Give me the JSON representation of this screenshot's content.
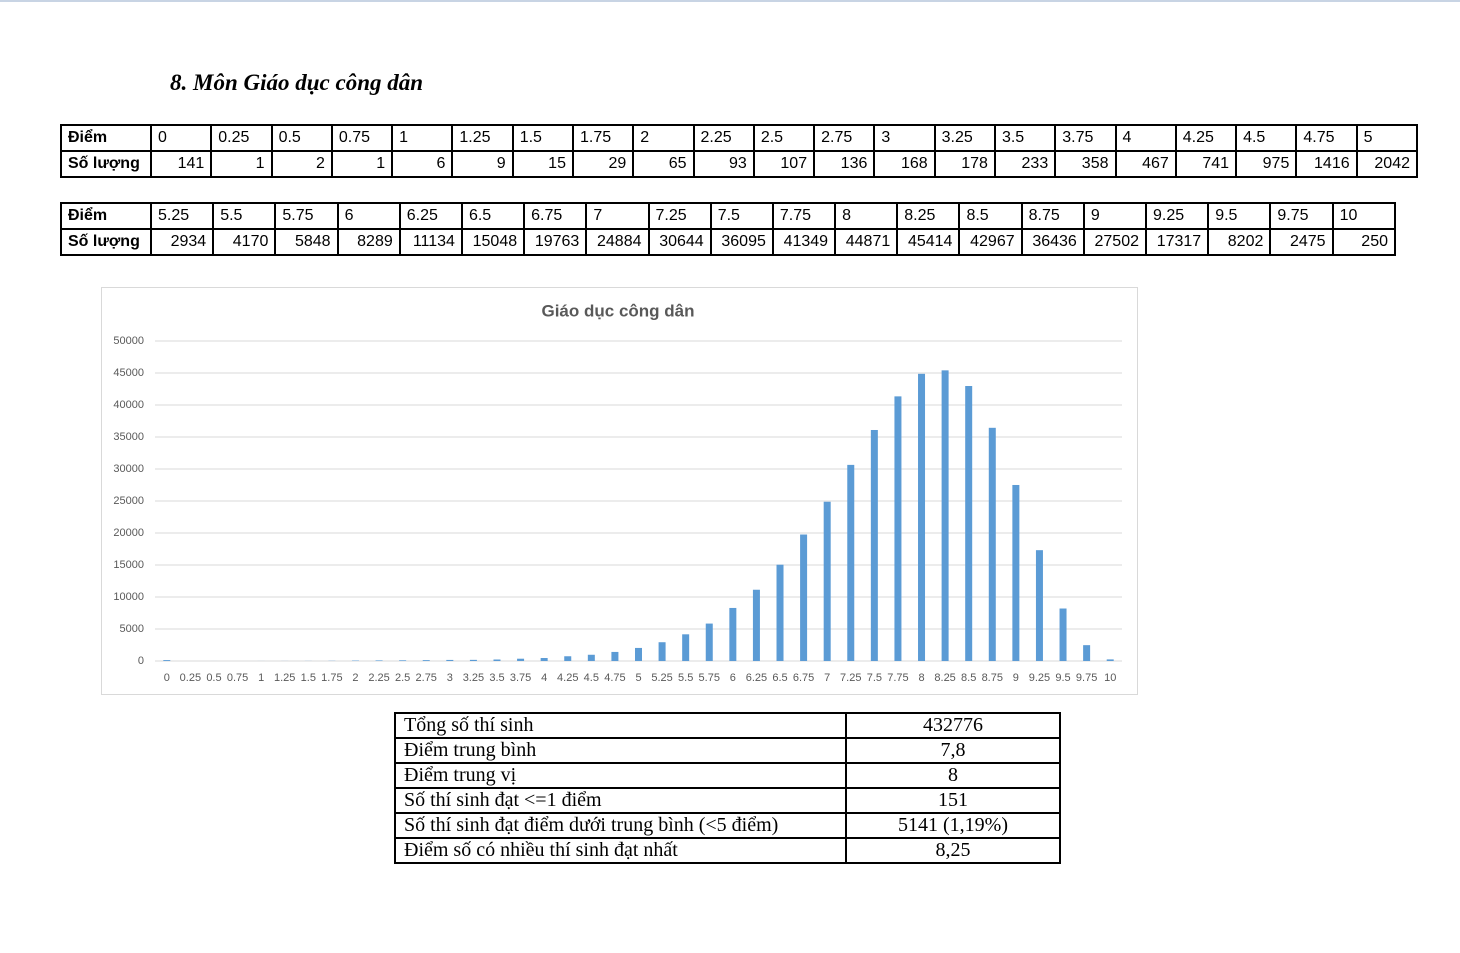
{
  "heading": "8. Môn Giáo dục công dân",
  "tables": [
    {
      "row_labels": [
        "Điểm",
        "Số lượng"
      ],
      "scores": [
        "0",
        "0.25",
        "0.5",
        "0.75",
        "1",
        "1.25",
        "1.5",
        "1.75",
        "2",
        "2.25",
        "2.5",
        "2.75",
        "3",
        "3.25",
        "3.5",
        "3.75",
        "4",
        "4.25",
        "4.5",
        "4.75",
        "5"
      ],
      "counts": [
        141,
        1,
        2,
        1,
        6,
        9,
        15,
        29,
        65,
        93,
        107,
        136,
        168,
        178,
        233,
        358,
        467,
        741,
        975,
        1416,
        2042
      ]
    },
    {
      "row_labels": [
        "Điểm",
        "Số lượng"
      ],
      "scores": [
        "5.25",
        "5.5",
        "5.75",
        "6",
        "6.25",
        "6.5",
        "6.75",
        "7",
        "7.25",
        "7.5",
        "7.75",
        "8",
        "8.25",
        "8.5",
        "8.75",
        "9",
        "9.25",
        "9.5",
        "9.75",
        "10"
      ],
      "counts": [
        2934,
        4170,
        5848,
        8289,
        11134,
        15048,
        19763,
        24884,
        30644,
        36095,
        41349,
        44871,
        45414,
        42967,
        36436,
        27502,
        17317,
        8202,
        2475,
        250
      ]
    }
  ],
  "chart_data": {
    "type": "bar",
    "title": "Giáo dục công dân",
    "categories": [
      "0",
      "0.25",
      "0.5",
      "0.75",
      "1",
      "1.25",
      "1.5",
      "1.75",
      "2",
      "2.25",
      "2.5",
      "2.75",
      "3",
      "3.25",
      "3.5",
      "3.75",
      "4",
      "4.25",
      "4.5",
      "4.75",
      "5",
      "5.25",
      "5.5",
      "5.75",
      "6",
      "6.25",
      "6.5",
      "6.75",
      "7",
      "7.25",
      "7.5",
      "7.75",
      "8",
      "8.25",
      "8.5",
      "8.75",
      "9",
      "9.25",
      "9.5",
      "9.75",
      "10"
    ],
    "values": [
      141,
      1,
      2,
      1,
      6,
      9,
      15,
      29,
      65,
      93,
      107,
      136,
      168,
      178,
      233,
      358,
      467,
      741,
      975,
      1416,
      2042,
      2934,
      4170,
      5848,
      8289,
      11134,
      15048,
      19763,
      24884,
      30644,
      36095,
      41349,
      44871,
      45414,
      42967,
      36436,
      27502,
      17317,
      8202,
      2475,
      250
    ],
    "color": "#5b9bd5",
    "ylim": [
      0,
      50000
    ],
    "yticks": [
      0,
      5000,
      10000,
      15000,
      20000,
      25000,
      30000,
      35000,
      40000,
      45000,
      50000
    ],
    "grid": true
  },
  "summary": {
    "rows": [
      [
        "Tổng số thí sinh",
        "432776"
      ],
      [
        "Điểm trung bình",
        "7,8"
      ],
      [
        "Điểm trung vị",
        "8"
      ],
      [
        "Số thí sinh đạt <=1 điểm",
        "151"
      ],
      [
        "Số thí sinh đạt điểm dưới trung bình (<5 điểm)",
        "5141 (1,19%)"
      ],
      [
        "Điểm số có nhiều thí sinh đạt nhất",
        "8,25"
      ]
    ]
  }
}
